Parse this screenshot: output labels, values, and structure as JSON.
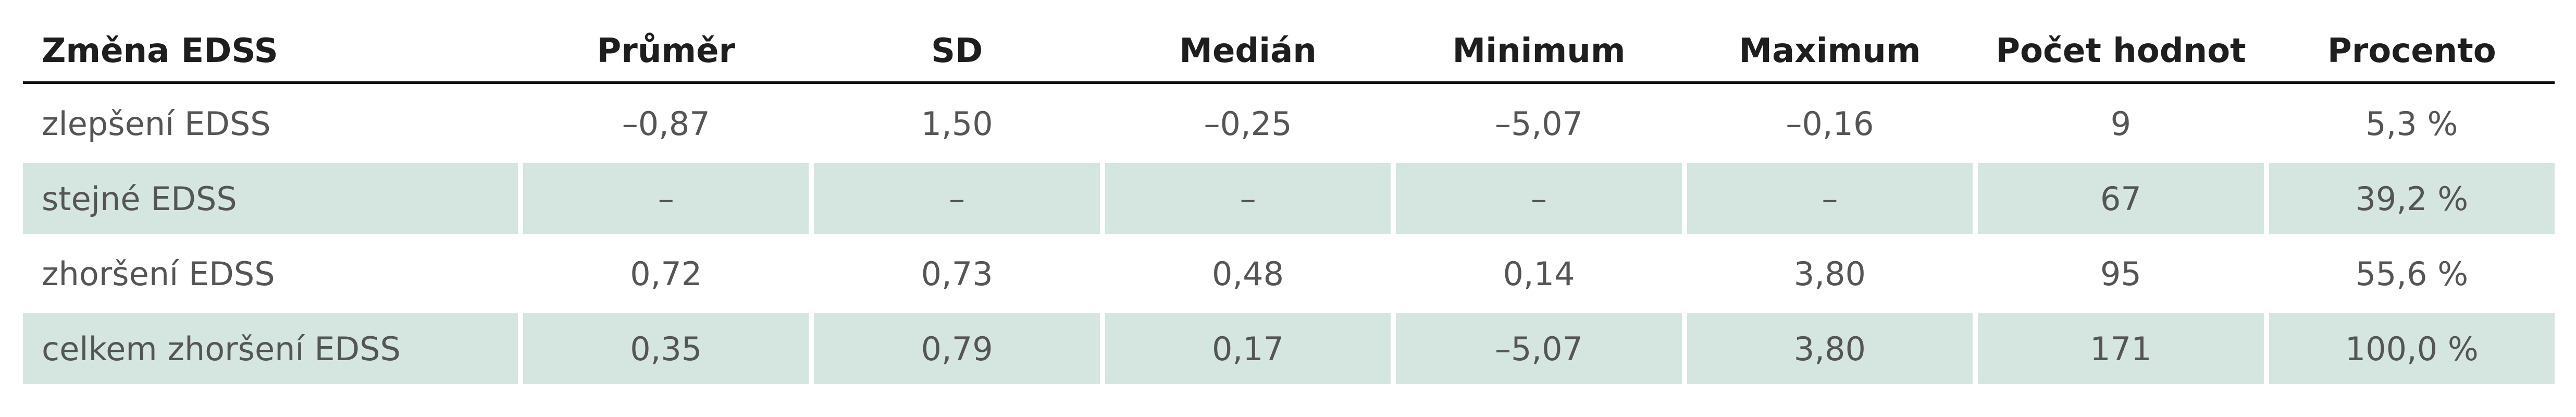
{
  "table": {
    "header": [
      "Změna EDSS",
      "Průměr",
      "SD",
      "Medián",
      "Minimum",
      "Maximum",
      "Počet hodnot",
      "Procento"
    ],
    "rows": [
      [
        "zlepšení EDSS",
        "–0,87",
        "1,50",
        "–0,25",
        "–5,07",
        "–0,16",
        "9",
        "5,3 %"
      ],
      [
        "stejné EDSS",
        "–",
        "–",
        "–",
        "–",
        "–",
        "67",
        "39,2 %"
      ],
      [
        "zhoršení EDSS",
        "0,72",
        "0,73",
        "0,48",
        "0,14",
        "3,80",
        "95",
        "55,6 %"
      ],
      [
        "celkem zhoršení EDSS",
        "0,35",
        "0,79",
        "0,17",
        "–5,07",
        "3,80",
        "171",
        "100,0 %"
      ]
    ]
  }
}
